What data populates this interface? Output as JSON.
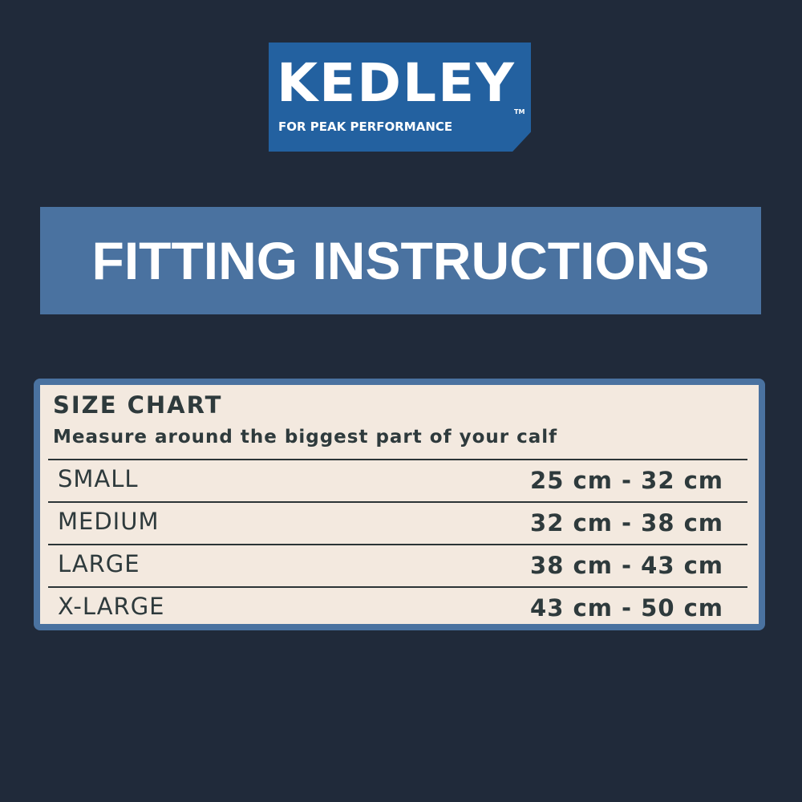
{
  "logo": {
    "brand": "KEDLEY",
    "trademark": "TM",
    "tagline": "FOR PEAK PERFORMANCE"
  },
  "banner": {
    "title": "FITTING INSTRUCTIONS"
  },
  "size_chart": {
    "title": "SIZE CHART",
    "subtitle": "Measure around the biggest part of your calf",
    "rows": [
      {
        "size": "SMALL",
        "range": "25 cm - 32 cm"
      },
      {
        "size": "MEDIUM",
        "range": "32 cm - 38 cm"
      },
      {
        "size": "LARGE",
        "range": "38 cm - 43 cm"
      },
      {
        "size": "X-LARGE",
        "range": "43 cm - 50 cm"
      }
    ]
  },
  "colors": {
    "background": "#202a3a",
    "logo": "#2361a0",
    "banner": "#4a72a0",
    "card": "#f3e9df"
  }
}
